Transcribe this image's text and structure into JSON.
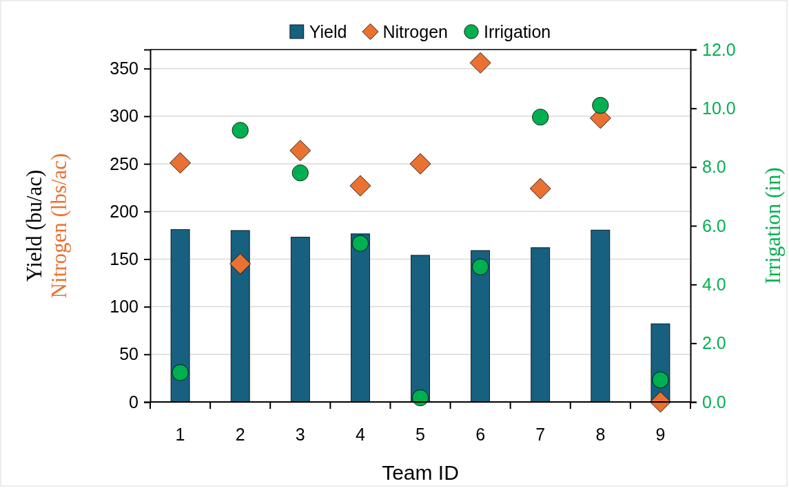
{
  "chart_data": {
    "type": "bar",
    "xlabel": "Team ID",
    "ylabel": "Yield (bu/ac)\nNitrogen (lbs/ac)",
    "y2label": "Irrigation (in)",
    "categories": [
      "1",
      "2",
      "3",
      "4",
      "5",
      "6",
      "7",
      "8",
      "9"
    ],
    "series": [
      {
        "name": "Yield",
        "color": "#17607f",
        "values": [
          181,
          180,
          173,
          176.5,
          154,
          159,
          162,
          180.5,
          82
        ]
      },
      {
        "name": "Nitrogen",
        "type": "scatter",
        "marker": "diamond",
        "color": "#e97132",
        "values": [
          251,
          145,
          264,
          227,
          250,
          356,
          224,
          298,
          0
        ]
      },
      {
        "name": "Irrigation",
        "type": "scatter",
        "marker": "circle",
        "axis": "y2",
        "color": "#00b050",
        "values": [
          1.0,
          9.25,
          7.8,
          5.4,
          0.14,
          4.6,
          9.7,
          10.1,
          0.75
        ]
      }
    ],
    "ylim": [
      0,
      370
    ],
    "yticks": [
      0,
      50,
      100,
      150,
      200,
      250,
      300,
      350
    ],
    "y2lim": [
      0,
      12
    ],
    "y2ticks": [
      {
        "value": 0,
        "label": "0.0"
      },
      {
        "value": 2,
        "label": "2.0"
      },
      {
        "value": 4,
        "label": "4.0"
      },
      {
        "value": 6,
        "label": "6.0"
      },
      {
        "value": 8,
        "label": "8.0"
      },
      {
        "value": 10,
        "label": "10.0"
      },
      {
        "value": 12,
        "label": "12.0"
      }
    ],
    "grid": "y",
    "legend": "top"
  }
}
